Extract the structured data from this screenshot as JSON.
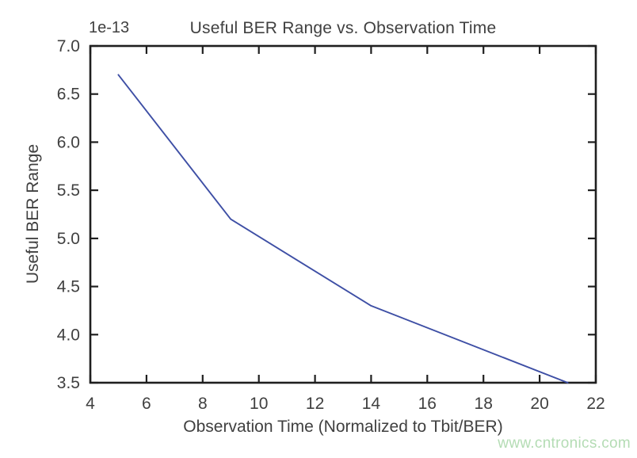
{
  "chart_data": {
    "type": "line",
    "title": "Useful BER Range vs. Observation Time",
    "xlabel": "Observation Time (Normalized to Tbit/BER)",
    "ylabel": "Useful BER Range",
    "offset_text": "1e-13",
    "x": [
      5,
      9,
      14,
      21
    ],
    "y": [
      6.7,
      5.2,
      4.3,
      3.5
    ],
    "y_unit_multiplier": "1e-13",
    "xlim": [
      4,
      22
    ],
    "ylim": [
      3.5,
      7.0
    ],
    "xticks": [
      4,
      6,
      8,
      10,
      12,
      14,
      16,
      18,
      20,
      22
    ],
    "xtick_labels": [
      "4",
      "6",
      "8",
      "10",
      "12",
      "14",
      "16",
      "18",
      "20",
      "22"
    ],
    "yticks": [
      3.5,
      4.0,
      4.5,
      5.0,
      5.5,
      6.0,
      6.5,
      7.0
    ],
    "ytick_labels": [
      "3.5",
      "4.0",
      "4.5",
      "5.0",
      "5.5",
      "6.0",
      "6.5",
      "7.0"
    ],
    "grid": false,
    "legend": null,
    "line_color": "#3e4fa5",
    "axis_color": "#1f1f1f",
    "text_color": "#404040"
  },
  "watermark": {
    "text": "www.cntronics.com",
    "color": "#b4dcb4"
  }
}
